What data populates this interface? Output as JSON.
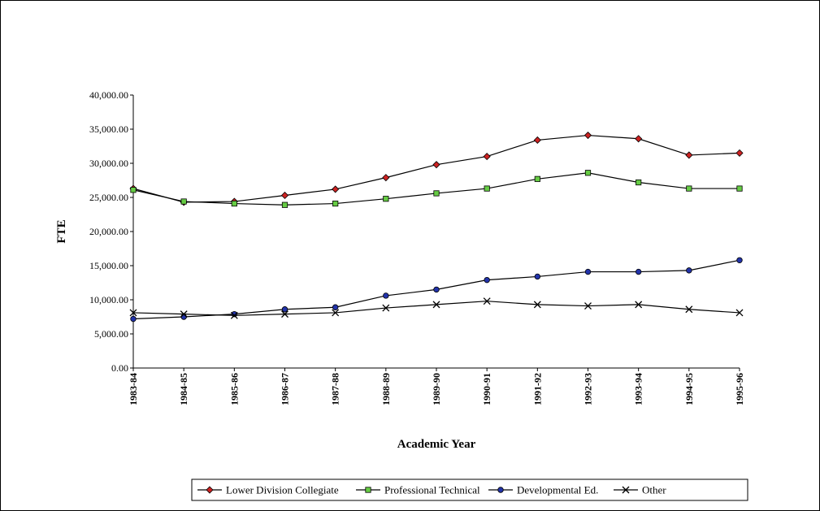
{
  "chart_data": {
    "type": "line",
    "title": "",
    "xlabel": "Academic Year",
    "ylabel": "FTE",
    "categories": [
      "1983-84",
      "1984-85",
      "1985-86",
      "1986-87",
      "1987-88",
      "1988-89",
      "1989-90",
      "1990-91",
      "1991-92",
      "1992-93",
      "1993-94",
      "1994-95",
      "1995-96"
    ],
    "ylim": [
      0,
      40000
    ],
    "yticks": [
      0,
      5000,
      10000,
      15000,
      20000,
      25000,
      30000,
      35000,
      40000
    ],
    "ytick_labels": [
      "0.00",
      "5,000.00",
      "10,000.00",
      "15,000.00",
      "20,000.00",
      "25,000.00",
      "30,000.00",
      "35,000.00",
      "40,000.00"
    ],
    "grid": false,
    "legend_position": "bottom",
    "series": [
      {
        "name": "Lower Division Collegiate",
        "marker": "diamond",
        "color": "#cc2222",
        "values": [
          26300,
          24300,
          24400,
          25300,
          26200,
          27900,
          29800,
          31000,
          33400,
          34100,
          33600,
          31200,
          31500
        ]
      },
      {
        "name": "Professional Technical",
        "marker": "square",
        "color": "#66cc44",
        "values": [
          26100,
          24400,
          24100,
          23900,
          24100,
          24800,
          25600,
          26300,
          27700,
          28600,
          27200,
          26300,
          26300
        ]
      },
      {
        "name": "Developmental Ed.",
        "marker": "circle",
        "color": "#2233aa",
        "values": [
          7200,
          7500,
          7900,
          8600,
          8900,
          10600,
          11500,
          12900,
          13400,
          14100,
          14100,
          14300,
          15800
        ]
      },
      {
        "name": "Other",
        "marker": "x",
        "color": "#000000",
        "values": [
          8100,
          7900,
          7700,
          7900,
          8100,
          8800,
          9300,
          9800,
          9300,
          9100,
          9300,
          8600,
          8100
        ]
      }
    ]
  }
}
